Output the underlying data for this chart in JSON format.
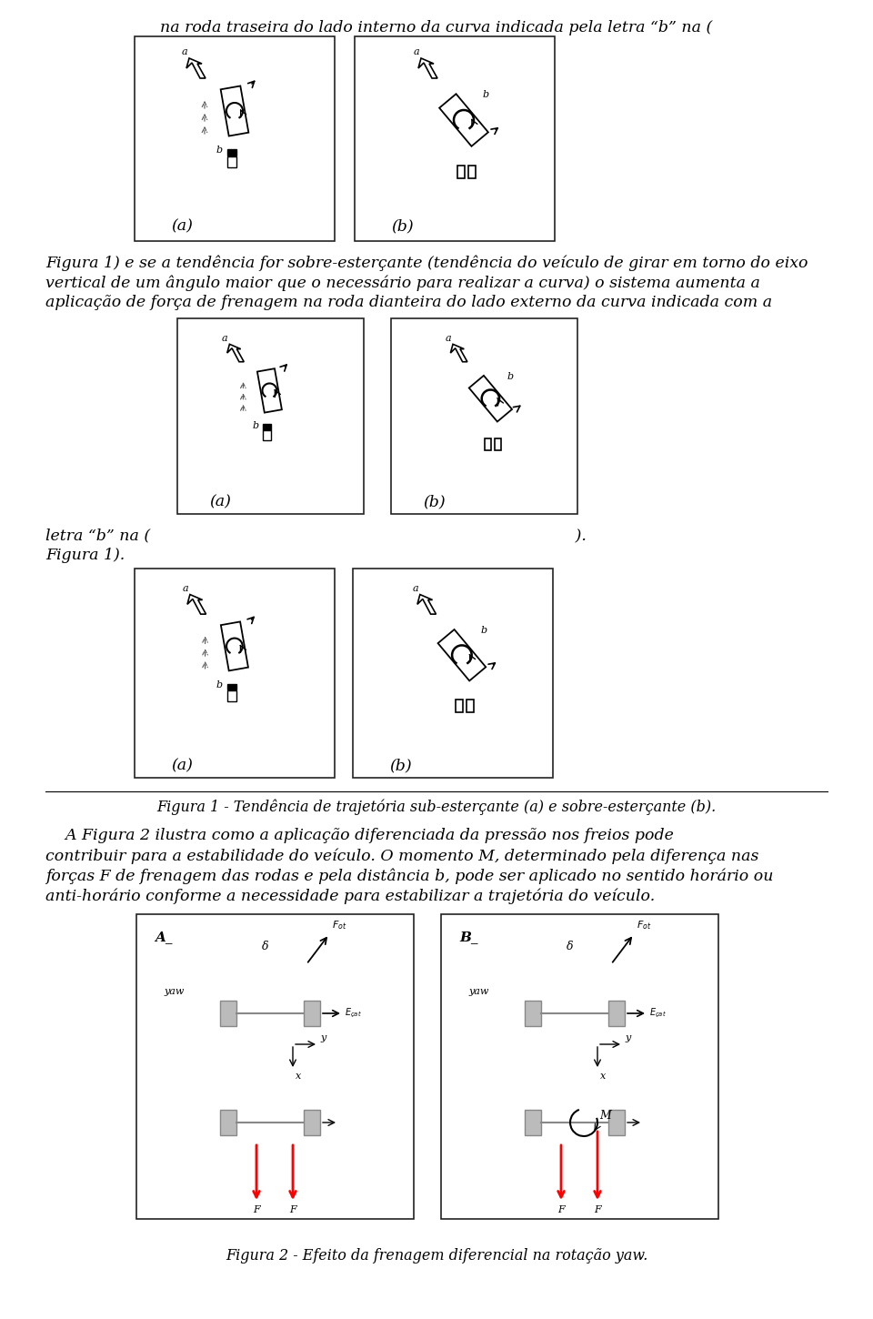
{
  "title_text": "na roda traseira do lado interno da curva indicada pela letra “b” na (",
  "paragraph1_line1": "Figura 1) e se a tendência for sobre-esterçante (tendência do veículo de girar em torno do eixo",
  "paragraph1_line2": "vertical de um ângulo maior que o necessário para realizar a curva) o sistema aumenta a",
  "paragraph1_line3": "aplicação de força de frenagem na roda dianteira do lado externo da curva indicada com a",
  "letra_line": "letra “b” na (                                                                                     ).",
  "figura1_ref": "Figura 1).",
  "paragraph3_line1": "    A Figura 2 ilustra como a aplicação diferenciada da pressão nos freios pode",
  "paragraph3_line2": "contribuir para a estabilidade do veículo. O momento M, determinado pela diferença nas",
  "paragraph3_line3": "forças F de frenagem das rodas e pela distância b, pode ser aplicado no sentido horário ou",
  "paragraph3_line4": "anti-horário conforme a necessidade para estabilizar a trajetória do veículo.",
  "fig1_caption": "Figura 1 - Tendência de trajetória sub-esterçante (a) e sobre-esterçante (b).",
  "fig2_caption": "Figura 2 - Efeito da frenagem diferencial na rotação yaw.",
  "bg_color": "#ffffff",
  "text_color": "#000000",
  "font_size_body": 12.5,
  "font_size_caption": 11.5,
  "font_size_small": 9
}
